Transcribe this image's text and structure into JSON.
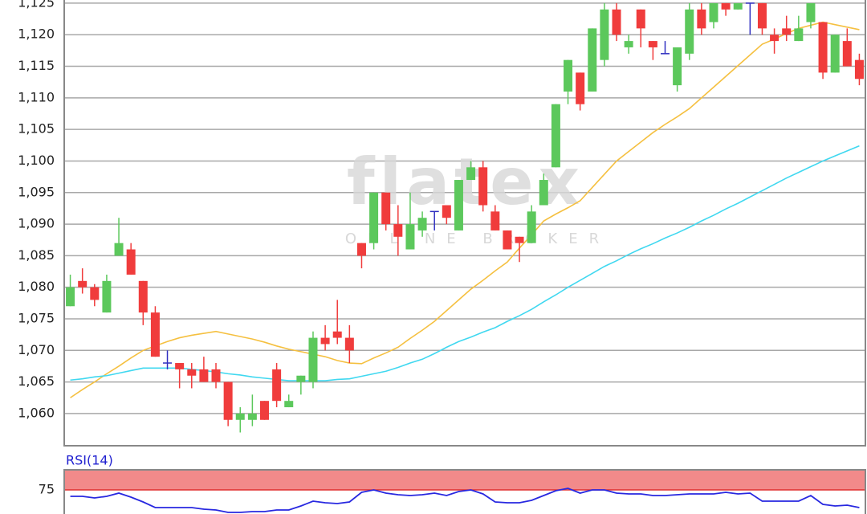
{
  "chart_data": [
    {
      "type": "candlestick",
      "watermark": "flatex",
      "watermark_sub": "ONLINE BROKER",
      "categories": [
        null,
        null,
        null,
        null,
        null,
        null,
        null,
        null,
        null,
        null,
        null,
        null,
        null,
        null,
        null,
        null,
        null,
        null,
        null,
        null,
        null,
        null,
        null,
        null,
        null,
        null,
        null,
        null,
        null,
        null,
        null,
        null,
        null,
        null,
        null,
        null,
        null,
        null,
        null,
        null,
        null,
        null,
        null,
        null,
        null,
        null,
        null,
        null,
        null,
        null,
        null,
        null,
        null,
        null,
        null,
        null,
        null,
        null,
        null,
        null,
        null,
        null,
        null,
        null,
        null,
        null
      ],
      "open": [
        1077,
        1081,
        1080,
        1076,
        1085,
        1086,
        1081,
        1076,
        1068,
        1068,
        1067,
        1067,
        1067,
        1065,
        1059,
        1059,
        1062,
        1067,
        1061,
        1065,
        1065,
        1072,
        1073,
        1072,
        1087,
        1087,
        1095,
        1090,
        1086,
        1089,
        1092,
        1093,
        1089,
        1097,
        1099,
        1092,
        1089,
        1088,
        1087,
        1093,
        1099,
        1111,
        1114,
        1111,
        1116,
        1124,
        1118,
        1124,
        1119,
        1117,
        1112,
        1117,
        1124,
        1122,
        1125,
        1124,
        1125,
        1125,
        1120,
        1121,
        1119,
        1122,
        1122,
        1114,
        1119,
        1116
      ],
      "high": [
        1082,
        1083,
        1080.5,
        1082,
        1091,
        1087,
        1081,
        1077,
        1070,
        1068,
        1068,
        1069,
        1068,
        1065,
        1061,
        1063,
        1062,
        1068,
        1063,
        1066,
        1073,
        1074,
        1078,
        1074,
        1087,
        1095,
        1095,
        1093,
        1095,
        1092,
        1092,
        1093,
        1097,
        1100,
        1100,
        1093,
        1089,
        1088,
        1093,
        1098,
        1109,
        1116,
        1114,
        1121,
        1125,
        1125,
        1120,
        1124,
        1119,
        1119,
        1118,
        1125,
        1125,
        1125,
        1125,
        1125,
        1125,
        1125,
        1121,
        1123,
        1123,
        1125,
        1122,
        1120,
        1121,
        1117
      ],
      "low": [
        1077,
        1079,
        1077,
        1076,
        1085,
        1082,
        1074,
        1069,
        1067,
        1064,
        1064,
        1065,
        1064,
        1058,
        1057,
        1058,
        1059,
        1061,
        1061,
        1063,
        1064,
        1070,
        1071,
        1068,
        1083,
        1086,
        1089,
        1085,
        1086,
        1088,
        1089,
        1090,
        1089,
        1097,
        1092,
        1089,
        1086,
        1084,
        1087,
        1093,
        1099,
        1109,
        1108,
        1111,
        1115,
        1119,
        1117,
        1118,
        1116,
        1117,
        1111,
        1116,
        1120,
        1121,
        1123,
        1124,
        1120,
        1120,
        1117,
        1119,
        1119,
        1121,
        1113,
        1114,
        1115,
        1112
      ],
      "close": [
        1080,
        1080,
        1078,
        1081,
        1087,
        1082,
        1076,
        1069,
        1068,
        1067,
        1066,
        1065,
        1065,
        1059,
        1060,
        1060,
        1059,
        1062,
        1062,
        1066,
        1072,
        1071,
        1072,
        1070,
        1085,
        1095,
        1090,
        1088,
        1090,
        1091,
        1092,
        1091,
        1097,
        1099,
        1093,
        1089,
        1086,
        1087,
        1092,
        1097,
        1109,
        1116,
        1109,
        1121,
        1124,
        1120,
        1119,
        1121,
        1118,
        1117,
        1118,
        1124,
        1121,
        1125,
        1124,
        1125,
        1125,
        1121,
        1119,
        1120,
        1121,
        1125,
        1114,
        1120,
        1115,
        1113
      ],
      "up_color": "#5cc85c",
      "down_color": "#f03c3c",
      "flat_color": "#3030c0",
      "lines": [
        {
          "color": "#f5c040",
          "values": [
            1062.5,
            1063.8,
            1065.0,
            1066.3,
            1067.5,
            1068.8,
            1070.0,
            1070.7,
            1071.4,
            1072.0,
            1072.4,
            1072.7,
            1073.0,
            1072.6,
            1072.2,
            1071.8,
            1071.3,
            1070.7,
            1070.2,
            1069.8,
            1069.4,
            1069.0,
            1068.4,
            1068.0,
            1067.9,
            1068.8,
            1069.6,
            1070.5,
            1071.9,
            1073.2,
            1074.6,
            1076.3,
            1078.0,
            1079.7,
            1081.1,
            1082.6,
            1084.0,
            1086.2,
            1088.3,
            1090.5,
            1091.6,
            1092.6,
            1093.7,
            1095.8,
            1097.9,
            1100.0,
            1101.5,
            1103.0,
            1104.5,
            1105.8,
            1107.0,
            1108.3,
            1110.0,
            1111.7,
            1113.4,
            1115.1,
            1116.8,
            1118.5,
            1119.3,
            1120.2,
            1121.0,
            1121.5,
            1122.0,
            1121.6,
            1121.2,
            1120.8
          ]
        },
        {
          "color": "#40d8f0",
          "values": [
            1065.3,
            1065.5,
            1065.8,
            1066.0,
            1066.4,
            1066.8,
            1067.2,
            1067.2,
            1067.2,
            1067.2,
            1067.0,
            1066.8,
            1066.6,
            1066.3,
            1066.1,
            1065.8,
            1065.6,
            1065.4,
            1065.2,
            1065.2,
            1065.2,
            1065.2,
            1065.4,
            1065.5,
            1065.9,
            1066.3,
            1066.7,
            1067.3,
            1068.0,
            1068.6,
            1069.5,
            1070.5,
            1071.4,
            1072.1,
            1072.9,
            1073.6,
            1074.6,
            1075.5,
            1076.5,
            1077.7,
            1078.8,
            1080.0,
            1081.1,
            1082.2,
            1083.3,
            1084.2,
            1085.2,
            1086.1,
            1086.9,
            1087.8,
            1088.6,
            1089.5,
            1090.5,
            1091.4,
            1092.4,
            1093.3,
            1094.3,
            1095.3,
            1096.3,
            1097.3,
            1098.2,
            1099.1,
            1100.0,
            1100.8,
            1101.6,
            1102.4
          ]
        }
      ],
      "ylim": [
        1054.9,
        1125.5
      ],
      "yticks": [
        {
          "value": 1060,
          "label": "1,060"
        },
        {
          "value": 1065,
          "label": "1,065"
        },
        {
          "value": 1070,
          "label": "1,070"
        },
        {
          "value": 1075,
          "label": "1,075"
        },
        {
          "value": 1080,
          "label": "1,080"
        },
        {
          "value": 1085,
          "label": "1,085"
        },
        {
          "value": 1090,
          "label": "1,090"
        },
        {
          "value": 1095,
          "label": "1,095"
        },
        {
          "value": 1100,
          "label": "1,100"
        },
        {
          "value": 1105,
          "label": "1,105"
        },
        {
          "value": 1110,
          "label": "1,110"
        },
        {
          "value": 1115,
          "label": "1,115"
        },
        {
          "value": 1120,
          "label": "1,120"
        },
        {
          "value": 1125,
          "label": "1,125"
        }
      ],
      "grid": true
    },
    {
      "type": "line",
      "title": "RSI(14)",
      "color": "#2828e0",
      "band_color": "#f28a8a",
      "values": [
        73.4,
        73.4,
        73.0,
        73.4,
        74.2,
        73.2,
        72.0,
        70.6,
        70.6,
        70.6,
        70.6,
        70.2,
        70.0,
        69.4,
        69.4,
        69.6,
        69.6,
        70.0,
        70.0,
        71.0,
        72.2,
        71.8,
        71.6,
        72.0,
        74.4,
        75.0,
        74.2,
        73.8,
        73.6,
        73.8,
        74.2,
        73.6,
        74.6,
        75.0,
        74.0,
        72.0,
        71.8,
        71.8,
        72.4,
        73.6,
        74.8,
        75.4,
        74.2,
        75.0,
        75.0,
        74.2,
        74.0,
        74.0,
        73.6,
        73.6,
        73.8,
        74.0,
        74.0,
        74.0,
        74.4,
        74.0,
        74.2,
        72.2,
        72.2,
        72.2,
        72.2,
        73.6,
        71.4,
        71.0,
        71.2,
        70.6
      ],
      "ylim": [
        69,
        80
      ],
      "yticks": [
        75
      ],
      "grid": true
    }
  ]
}
